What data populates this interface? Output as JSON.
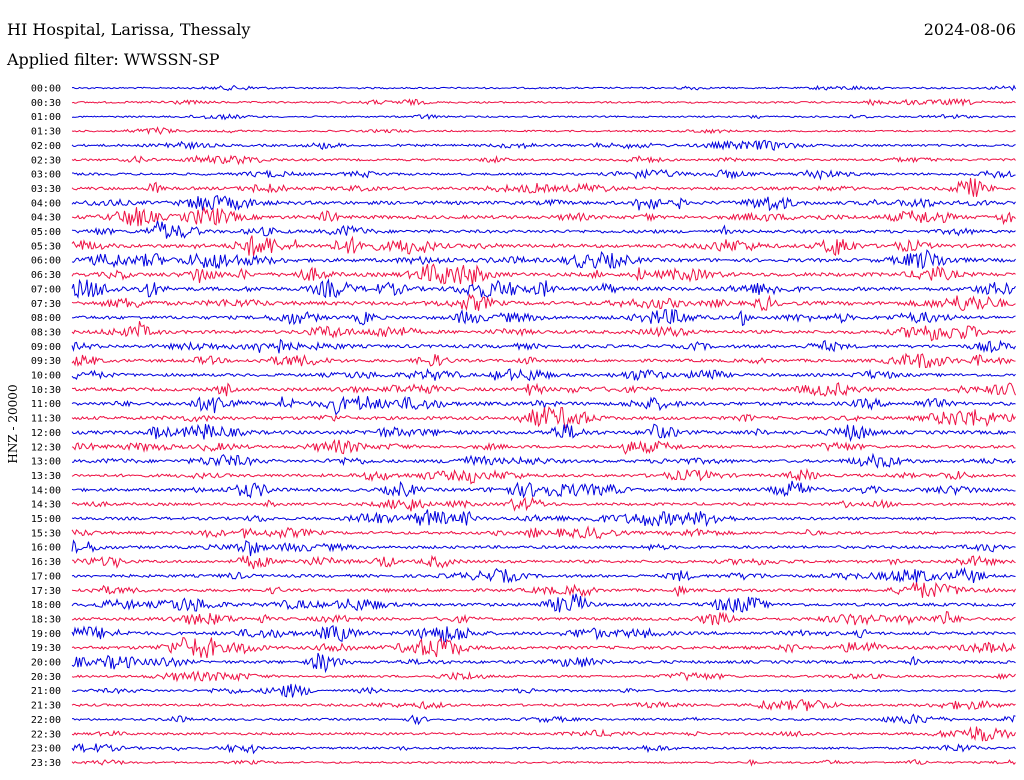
{
  "header": {
    "station": "HI Hospital, Larissa, Thessaly",
    "date": "2024-08-06",
    "filter": "Applied filter: WWSSN-SP"
  },
  "chart_data": {
    "type": "line",
    "title": "HI Hospital, Larissa, Thessaly",
    "subtitle": "Applied filter: WWSSN-SP",
    "date": "2024-08-06",
    "ylabel": "HNZ - 20000",
    "xlabel": "",
    "grid": false,
    "trace_colors": [
      "#0000dd",
      "#ee1144"
    ],
    "row_labels": [
      "00:00",
      "00:30",
      "01:00",
      "01:30",
      "02:00",
      "02:30",
      "03:00",
      "03:30",
      "04:00",
      "04:30",
      "05:00",
      "05:30",
      "06:00",
      "06:30",
      "07:00",
      "07:30",
      "08:00",
      "08:30",
      "09:00",
      "09:30",
      "10:00",
      "10:30",
      "11:00",
      "11:30",
      "12:00",
      "12:30",
      "13:00",
      "13:30",
      "14:00",
      "14:30",
      "15:00",
      "15:30",
      "16:00",
      "16:30",
      "17:00",
      "17:30",
      "18:00",
      "18:30",
      "19:00",
      "19:30",
      "20:00",
      "20:30",
      "21:00",
      "21:30",
      "22:00",
      "22:30",
      "23:00",
      "23:30"
    ],
    "activity_level": [
      0.1,
      0.15,
      0.1,
      0.1,
      0.3,
      0.25,
      0.3,
      0.45,
      0.6,
      0.6,
      0.5,
      0.6,
      0.6,
      0.7,
      0.65,
      0.7,
      0.55,
      0.55,
      0.55,
      0.45,
      0.45,
      0.55,
      0.6,
      0.55,
      0.6,
      0.45,
      0.45,
      0.45,
      0.5,
      0.4,
      0.45,
      0.45,
      0.45,
      0.45,
      0.45,
      0.45,
      0.5,
      0.45,
      0.5,
      0.5,
      0.45,
      0.25,
      0.3,
      0.3,
      0.25,
      0.3,
      0.25,
      0.15
    ]
  }
}
